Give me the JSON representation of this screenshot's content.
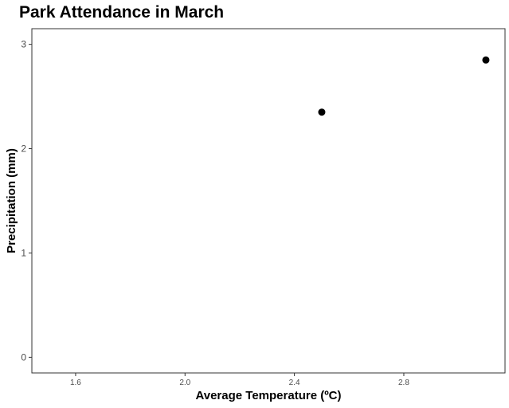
{
  "chart_data": {
    "type": "scatter",
    "title": "Park Attendance in March",
    "xlabel": "Average Temperature (ºC)",
    "ylabel": "Precipitation (mm)",
    "xlim": [
      1.44,
      3.17
    ],
    "ylim": [
      -0.15,
      3.15
    ],
    "x_ticks": [
      1.6,
      2.0,
      2.4,
      2.8
    ],
    "x_tick_labels": [
      "1.6",
      "2.0",
      "2.4",
      "2.8"
    ],
    "y_ticks": [
      0,
      1,
      2,
      3
    ],
    "y_tick_labels": [
      "0",
      "1",
      "2",
      "3"
    ],
    "grid": false,
    "point_color": "#000000",
    "points": [
      {
        "x": 2.5,
        "y": 2.35
      },
      {
        "x": 3.1,
        "y": 2.85
      }
    ]
  }
}
